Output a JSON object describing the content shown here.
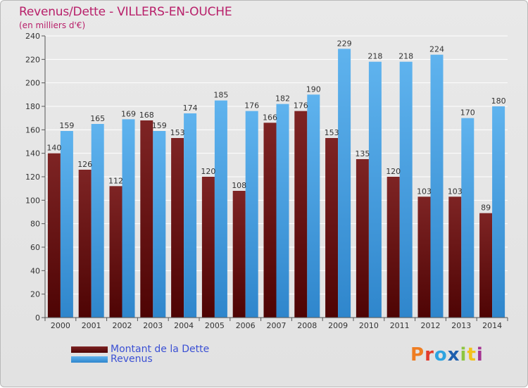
{
  "header": {
    "title": "Revenus/Dette - VILLERS-EN-OUCHE",
    "subtitle": "(en milliers d'€)"
  },
  "legend": {
    "debt_label": "Montant de la Dette",
    "revenue_label": "Revenus"
  },
  "logo": {
    "text": "Proxiti",
    "letter_colors": [
      "#ef7d22",
      "#e23b2c",
      "#2da3e0",
      "#1e5fae",
      "#8dc63f",
      "#f2c21c",
      "#a53391"
    ]
  },
  "colors": {
    "debt": "#7a1c1c",
    "debt_dark": "#4a0505",
    "revenue": "#5cb0ec",
    "revenue_dark": "#2d86cc",
    "title": "#b8206a",
    "legend_text": "#3b50d4"
  },
  "chart_data": {
    "type": "bar",
    "title": "Revenus/Dette - VILLERS-EN-OUCHE",
    "ylabel": "(en milliers d'€)",
    "xlabel": "",
    "categories": [
      "2000",
      "2001",
      "2002",
      "2003",
      "2004",
      "2005",
      "2006",
      "2007",
      "2008",
      "2009",
      "2010",
      "2011",
      "2012",
      "2013",
      "2014"
    ],
    "series": [
      {
        "name": "Montant de la Dette",
        "values": [
          140,
          126,
          112,
          168,
          153,
          120,
          108,
          166,
          176,
          153,
          135,
          120,
          103,
          103,
          89
        ]
      },
      {
        "name": "Revenus",
        "values": [
          159,
          165,
          169,
          159,
          174,
          185,
          176,
          182,
          190,
          229,
          218,
          218,
          224,
          170,
          180
        ]
      }
    ],
    "ylim": [
      0,
      240
    ],
    "yticks": [
      0,
      20,
      40,
      60,
      80,
      100,
      120,
      140,
      160,
      180,
      200,
      220,
      240
    ],
    "grid": true,
    "legend_position": "bottom-left"
  }
}
